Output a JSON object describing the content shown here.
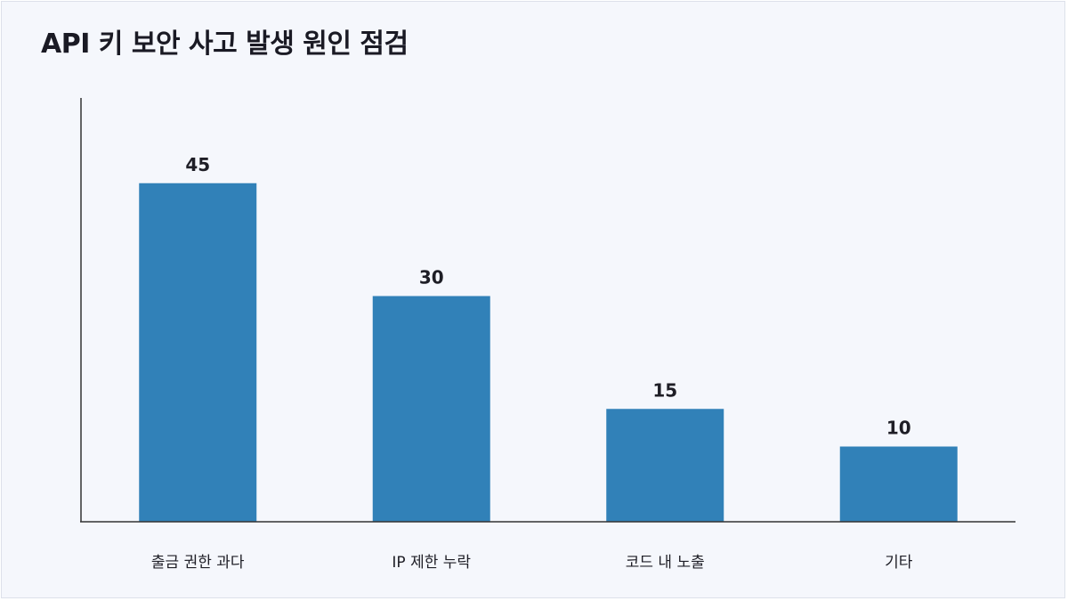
{
  "chart_data": {
    "type": "bar",
    "title": "API 키 보안 사고 발생 원인 점검",
    "categories": [
      "출금 권한 과다",
      "IP 제한 누락",
      "코드 내 노출",
      "기타"
    ],
    "values": [
      45,
      30,
      15,
      10
    ],
    "xlabel": "",
    "ylabel": "",
    "ylim": [
      0,
      56
    ],
    "grid": false,
    "legend": "none",
    "bar_color": "#3181b8"
  }
}
